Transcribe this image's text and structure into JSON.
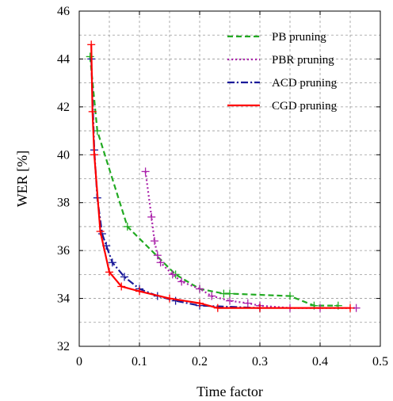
{
  "chart_data": {
    "type": "line",
    "title": "",
    "xlabel": "Time factor",
    "ylabel": "WER [%]",
    "xlim": [
      0,
      0.5
    ],
    "ylim": [
      32,
      46
    ],
    "xticks": [
      0,
      0.1,
      0.2,
      0.3,
      0.4,
      0.5
    ],
    "xtick_labels": [
      "0",
      "0.1",
      "0.2",
      "0.3",
      "0.4",
      "0.5"
    ],
    "yticks": [
      32,
      34,
      36,
      38,
      40,
      42,
      44,
      46
    ],
    "ytick_labels": [
      "32",
      "34",
      "36",
      "38",
      "40",
      "42",
      "44",
      "46"
    ],
    "grid": true,
    "legend_position": "top-right",
    "series": [
      {
        "name": "PB pruning",
        "color": "#22aa22",
        "dash": "dashed",
        "marker": "plus",
        "x": [
          0.018,
          0.03,
          0.08,
          0.16,
          0.2,
          0.24,
          0.25,
          0.35,
          0.39,
          0.43
        ],
        "y": [
          44.1,
          41.0,
          37.0,
          35.0,
          34.4,
          34.2,
          34.2,
          34.1,
          33.7,
          33.7
        ]
      },
      {
        "name": "PBR pruning",
        "color": "#aa22aa",
        "dash": "dotted",
        "marker": "plus",
        "x": [
          0.11,
          0.12,
          0.125,
          0.13,
          0.135,
          0.155,
          0.17,
          0.2,
          0.22,
          0.25,
          0.28,
          0.3,
          0.35,
          0.4,
          0.46
        ],
        "y": [
          39.3,
          37.4,
          36.4,
          35.8,
          35.5,
          35.0,
          34.7,
          34.4,
          34.1,
          33.9,
          33.8,
          33.7,
          33.6,
          33.6,
          33.6
        ]
      },
      {
        "name": "ACD pruning",
        "color": "#1a1a99",
        "dash": "dashdot",
        "marker": "plus",
        "x": [
          0.02,
          0.025,
          0.03,
          0.038,
          0.045,
          0.055,
          0.075,
          0.1,
          0.13,
          0.16,
          0.2,
          0.3
        ],
        "y": [
          44.0,
          40.2,
          38.2,
          36.7,
          36.2,
          35.5,
          34.9,
          34.4,
          34.1,
          33.9,
          33.7,
          33.6
        ]
      },
      {
        "name": "CGD pruning",
        "color": "#ff0000",
        "dash": "solid",
        "marker": "plus",
        "x": [
          0.02,
          0.022,
          0.025,
          0.035,
          0.05,
          0.07,
          0.1,
          0.15,
          0.2,
          0.23,
          0.3,
          0.45
        ],
        "y": [
          44.6,
          41.8,
          40.0,
          36.8,
          35.1,
          34.5,
          34.3,
          34.0,
          33.8,
          33.6,
          33.6,
          33.6
        ]
      }
    ]
  }
}
